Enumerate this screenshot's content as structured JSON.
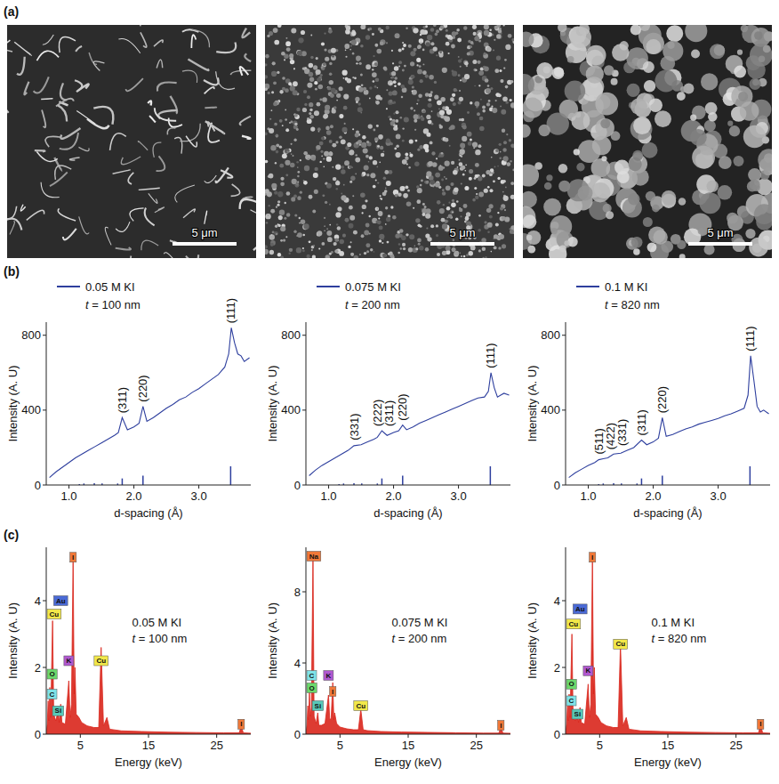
{
  "panel_labels": [
    "(a)",
    "(b)",
    "(c)"
  ],
  "sem_images": [
    {
      "scale_bar": "5 μm"
    },
    {
      "scale_bar": "5 μm"
    },
    {
      "scale_bar": "5 μm"
    }
  ],
  "chart_data": [
    {
      "type": "line",
      "x_label": "d-spacing (Å)",
      "y_label": "Intensity (A. U)",
      "xlim": [
        0.65,
        3.8
      ],
      "ylim": [
        0,
        870
      ],
      "xticks": [
        {
          "value": 1,
          "label": "1.0"
        },
        {
          "value": 2,
          "label": "2.0"
        },
        {
          "value": 3,
          "label": "3.0"
        }
      ],
      "yticks": [
        0,
        400,
        800
      ],
      "subtitle": "t = 100 nm",
      "series": [
        {
          "name": "0.05 M KI",
          "color": "#2e3f9e",
          "x": [
            0.7,
            0.8,
            0.9,
            1.0,
            1.1,
            1.2,
            1.3,
            1.4,
            1.5,
            1.6,
            1.7,
            1.76,
            1.82,
            1.9,
            2.0,
            2.08,
            2.14,
            2.2,
            2.3,
            2.4,
            2.5,
            2.6,
            2.7,
            2.8,
            2.9,
            3.0,
            3.1,
            3.2,
            3.3,
            3.4,
            3.46,
            3.5,
            3.55,
            3.6,
            3.65,
            3.7,
            3.78
          ],
          "values": [
            40,
            70,
            95,
            120,
            145,
            165,
            185,
            205,
            225,
            245,
            265,
            280,
            360,
            295,
            310,
            330,
            420,
            340,
            360,
            385,
            410,
            430,
            455,
            470,
            495,
            515,
            540,
            565,
            590,
            630,
            700,
            840,
            760,
            700,
            690,
            660,
            680
          ]
        }
      ],
      "reference_peaks": {
        "x": [
          1.16,
          1.23,
          1.39,
          1.51,
          1.75,
          1.82,
          2.14,
          3.49
        ],
        "values": [
          5,
          8,
          10,
          8,
          8,
          35,
          50,
          100
        ]
      },
      "annotations": [
        {
          "text": "(311)",
          "x": 1.82
        },
        {
          "text": "(220)",
          "x": 2.14
        },
        {
          "text": "(111)",
          "x": 3.49
        }
      ]
    },
    {
      "type": "line",
      "x_label": "d-spacing (Å)",
      "y_label": "Intensity (A. U)",
      "xlim": [
        0.65,
        3.8
      ],
      "ylim": [
        0,
        870
      ],
      "xticks": [
        {
          "value": 1,
          "label": "1.0"
        },
        {
          "value": 2,
          "label": "2.0"
        },
        {
          "value": 3,
          "label": "3.0"
        }
      ],
      "yticks": [
        0,
        400,
        800
      ],
      "subtitle": "t = 200 nm",
      "series": [
        {
          "name": "0.075 M KI",
          "color": "#2e3f9e",
          "x": [
            0.7,
            0.8,
            0.9,
            1.0,
            1.1,
            1.2,
            1.3,
            1.39,
            1.5,
            1.6,
            1.7,
            1.75,
            1.82,
            1.9,
            2.0,
            2.08,
            2.14,
            2.2,
            2.3,
            2.4,
            2.5,
            2.6,
            2.7,
            2.8,
            2.9,
            3.0,
            3.1,
            3.2,
            3.3,
            3.4,
            3.46,
            3.5,
            3.55,
            3.6,
            3.65,
            3.7,
            3.78
          ],
          "values": [
            50,
            80,
            105,
            125,
            145,
            165,
            185,
            210,
            215,
            230,
            245,
            255,
            290,
            265,
            280,
            290,
            320,
            295,
            310,
            330,
            345,
            360,
            375,
            390,
            405,
            420,
            435,
            450,
            465,
            470,
            500,
            600,
            520,
            470,
            480,
            490,
            480
          ]
        }
      ],
      "reference_peaks": {
        "x": [
          1.16,
          1.23,
          1.39,
          1.51,
          1.75,
          1.82,
          2.14,
          3.49
        ],
        "values": [
          5,
          8,
          10,
          8,
          8,
          35,
          50,
          100
        ]
      },
      "annotations": [
        {
          "text": "(331)",
          "x": 1.39
        },
        {
          "text": "(222)",
          "x": 1.75
        },
        {
          "text": "(311)",
          "x": 1.82
        },
        {
          "text": "(220)",
          "x": 2.14
        },
        {
          "text": "(111)",
          "x": 3.49
        }
      ]
    },
    {
      "type": "line",
      "x_label": "d-spacing (Å)",
      "y_label": "Intensity (A. U)",
      "xlim": [
        0.65,
        3.8
      ],
      "ylim": [
        0,
        870
      ],
      "xticks": [
        {
          "value": 1,
          "label": "1.0"
        },
        {
          "value": 2,
          "label": "2.0"
        },
        {
          "value": 3,
          "label": "3.0"
        }
      ],
      "yticks": [
        0,
        400,
        800
      ],
      "subtitle": "t = 820 nm",
      "series": [
        {
          "name": "0.1 M KI",
          "color": "#2e3f9e",
          "x": [
            0.7,
            0.8,
            0.9,
            1.0,
            1.1,
            1.16,
            1.23,
            1.3,
            1.39,
            1.5,
            1.6,
            1.7,
            1.82,
            1.9,
            2.0,
            2.08,
            2.14,
            2.2,
            2.3,
            2.4,
            2.5,
            2.6,
            2.7,
            2.8,
            2.9,
            3.0,
            3.1,
            3.2,
            3.3,
            3.4,
            3.46,
            3.5,
            3.55,
            3.6,
            3.65,
            3.7,
            3.78
          ],
          "values": [
            40,
            65,
            85,
            105,
            120,
            135,
            140,
            145,
            165,
            170,
            185,
            200,
            240,
            215,
            230,
            250,
            360,
            260,
            270,
            285,
            300,
            310,
            325,
            335,
            345,
            355,
            370,
            380,
            395,
            410,
            480,
            690,
            560,
            420,
            390,
            400,
            380
          ]
        }
      ],
      "reference_peaks": {
        "x": [
          1.16,
          1.23,
          1.39,
          1.51,
          1.75,
          1.82,
          2.14,
          3.49
        ],
        "values": [
          5,
          8,
          10,
          8,
          8,
          35,
          50,
          100
        ]
      },
      "annotations": [
        {
          "text": "(511)",
          "x": 1.16
        },
        {
          "text": "(422)",
          "x": 1.23
        },
        {
          "text": "(331)",
          "x": 1.39
        },
        {
          "text": "(311)",
          "x": 1.82
        },
        {
          "text": "(220)",
          "x": 2.14
        },
        {
          "text": "(111)",
          "x": 3.49
        }
      ]
    },
    {
      "type": "area",
      "x_label": "Energy (keV)",
      "y_label": "Intensity (A. U)",
      "xlim": [
        0,
        30
      ],
      "ylim": [
        0,
        5.6
      ],
      "xticks": [
        5,
        15,
        25
      ],
      "yticks": [
        0,
        2,
        4
      ],
      "subtitle": "t = 100 nm",
      "series": [
        {
          "name": "0.05 M KI",
          "color": "#d9261c",
          "x": [
            0,
            0.15,
            0.28,
            0.4,
            0.52,
            0.65,
            0.93,
            1.1,
            1.4,
            1.74,
            1.9,
            2.12,
            2.3,
            2.8,
            3.31,
            3.5,
            3.7,
            3.94,
            4.1,
            4.22,
            4.4,
            4.8,
            5.2,
            6,
            7,
            7.7,
            8.05,
            8.4,
            8.9,
            9.3,
            11,
            14,
            18,
            22,
            26,
            28.3,
            28.6,
            28.9,
            30
          ],
          "values": [
            0,
            0.3,
            1.0,
            0.4,
            1.4,
            0.5,
            3.4,
            0.6,
            0.4,
            0.7,
            0.35,
            0.9,
            0.35,
            0.3,
            1.6,
            0.5,
            0.9,
            5.3,
            1.2,
            2.0,
            0.6,
            0.5,
            0.35,
            0.25,
            0.2,
            0.2,
            2.6,
            0.25,
            0.5,
            0.15,
            0.1,
            0.08,
            0.06,
            0.05,
            0.04,
            0.04,
            0.25,
            0.04,
            0.03
          ]
        }
      ],
      "annotations": [
        {
          "text": "Cu",
          "x": 0.93,
          "y": 3.6,
          "color": "#f2e84a"
        },
        {
          "text": "O",
          "x": 0.52,
          "y": 1.8,
          "color": "#6cd86c"
        },
        {
          "text": "C",
          "x": 0.28,
          "y": 1.2,
          "color": "#7fe3e8"
        },
        {
          "text": "Au",
          "x": 2.12,
          "y": 4.0,
          "color": "#4a6ad6"
        },
        {
          "text": "Si",
          "x": 1.74,
          "y": 0.7,
          "color": "#58c8b8"
        },
        {
          "text": "K",
          "x": 3.31,
          "y": 2.2,
          "color": "#b058d0"
        },
        {
          "text": "I",
          "x": 3.94,
          "y": 5.3,
          "color": "#f07838"
        },
        {
          "text": "Cu",
          "x": 8.05,
          "y": 2.2,
          "color": "#f2e84a"
        },
        {
          "text": "I",
          "x": 28.6,
          "y": 0.3,
          "color": "#f07838"
        }
      ]
    },
    {
      "type": "area",
      "x_label": "Energy (keV)",
      "y_label": "Intensity (A. U)",
      "xlim": [
        0,
        30
      ],
      "ylim": [
        0,
        10.5
      ],
      "xticks": [
        5,
        15,
        25
      ],
      "yticks": [
        0,
        4,
        8
      ],
      "subtitle": "t = 200 nm",
      "series": [
        {
          "name": "0.075 M KI",
          "color": "#d9261c",
          "x": [
            0,
            0.15,
            0.28,
            0.4,
            0.52,
            0.65,
            0.8,
            1.04,
            1.2,
            1.5,
            1.74,
            1.9,
            2.3,
            2.8,
            3.31,
            3.5,
            3.7,
            3.94,
            4.1,
            4.22,
            4.5,
            5,
            6,
            7,
            7.7,
            8.05,
            8.4,
            9,
            11,
            14,
            18,
            22,
            26,
            28.3,
            28.6,
            28.9,
            30
          ],
          "values": [
            0,
            0.5,
            1.6,
            0.8,
            2.4,
            1.0,
            1.5,
            10.0,
            1.0,
            0.6,
            1.2,
            0.5,
            0.5,
            0.6,
            2.2,
            0.8,
            0.9,
            2.9,
            0.8,
            1.2,
            0.6,
            0.4,
            0.3,
            0.25,
            0.25,
            1.4,
            0.25,
            0.2,
            0.15,
            0.12,
            0.1,
            0.08,
            0.06,
            0.06,
            0.4,
            0.06,
            0.05
          ]
        }
      ],
      "annotations": [
        {
          "text": "Na",
          "x": 1.04,
          "y": 10.0,
          "color": "#f07838"
        },
        {
          "text": "C",
          "x": 0.28,
          "y": 3.3,
          "color": "#7fe3e8"
        },
        {
          "text": "O",
          "x": 0.52,
          "y": 2.6,
          "color": "#6cd86c"
        },
        {
          "text": "Si",
          "x": 1.74,
          "y": 1.6,
          "color": "#58c8b8"
        },
        {
          "text": "K",
          "x": 3.31,
          "y": 3.3,
          "color": "#b058d0"
        },
        {
          "text": "I",
          "x": 3.94,
          "y": 2.4,
          "color": "#f07838"
        },
        {
          "text": "Cu",
          "x": 8.05,
          "y": 1.6,
          "color": "#f2e84a"
        },
        {
          "text": "I",
          "x": 28.6,
          "y": 0.5,
          "color": "#f07838"
        }
      ]
    },
    {
      "type": "area",
      "x_label": "Energy (keV)",
      "y_label": "Intensity (A. U)",
      "xlim": [
        0,
        30
      ],
      "ylim": [
        0,
        5.6
      ],
      "xticks": [
        5,
        15,
        25
      ],
      "yticks": [
        0,
        2,
        4
      ],
      "subtitle": "t = 820 nm",
      "series": [
        {
          "name": "0.1 M KI",
          "color": "#d9261c",
          "x": [
            0,
            0.15,
            0.28,
            0.4,
            0.52,
            0.65,
            0.93,
            1.1,
            1.4,
            1.74,
            1.9,
            2.12,
            2.3,
            2.8,
            3.31,
            3.5,
            3.7,
            3.94,
            4.1,
            4.22,
            4.4,
            4.8,
            5.2,
            6,
            7,
            7.7,
            8.05,
            8.4,
            8.9,
            9.3,
            11,
            14,
            18,
            22,
            26,
            28.3,
            28.6,
            28.9,
            30
          ],
          "values": [
            0,
            0.3,
            0.9,
            0.4,
            1.2,
            0.5,
            3.0,
            0.6,
            0.4,
            0.6,
            0.35,
            0.8,
            0.35,
            0.3,
            1.5,
            0.5,
            0.9,
            5.3,
            1.2,
            2.0,
            0.6,
            0.5,
            0.35,
            0.25,
            0.2,
            0.2,
            2.7,
            0.25,
            0.5,
            0.15,
            0.1,
            0.08,
            0.06,
            0.05,
            0.04,
            0.04,
            0.3,
            0.04,
            0.03
          ]
        }
      ],
      "annotations": [
        {
          "text": "Cu",
          "x": 0.93,
          "y": 3.3,
          "color": "#f2e84a"
        },
        {
          "text": "O",
          "x": 0.52,
          "y": 1.5,
          "color": "#6cd86c"
        },
        {
          "text": "C",
          "x": 0.28,
          "y": 1.0,
          "color": "#7fe3e8"
        },
        {
          "text": "Au",
          "x": 2.12,
          "y": 3.75,
          "color": "#4a6ad6"
        },
        {
          "text": "Si",
          "x": 1.74,
          "y": 0.6,
          "color": "#58c8b8"
        },
        {
          "text": "K",
          "x": 3.31,
          "y": 1.9,
          "color": "#b058d0"
        },
        {
          "text": "I",
          "x": 3.94,
          "y": 5.3,
          "color": "#f07838"
        },
        {
          "text": "Cu",
          "x": 8.05,
          "y": 2.7,
          "color": "#f2e84a"
        },
        {
          "text": "I",
          "x": 28.6,
          "y": 0.3,
          "color": "#f07838"
        }
      ]
    }
  ]
}
